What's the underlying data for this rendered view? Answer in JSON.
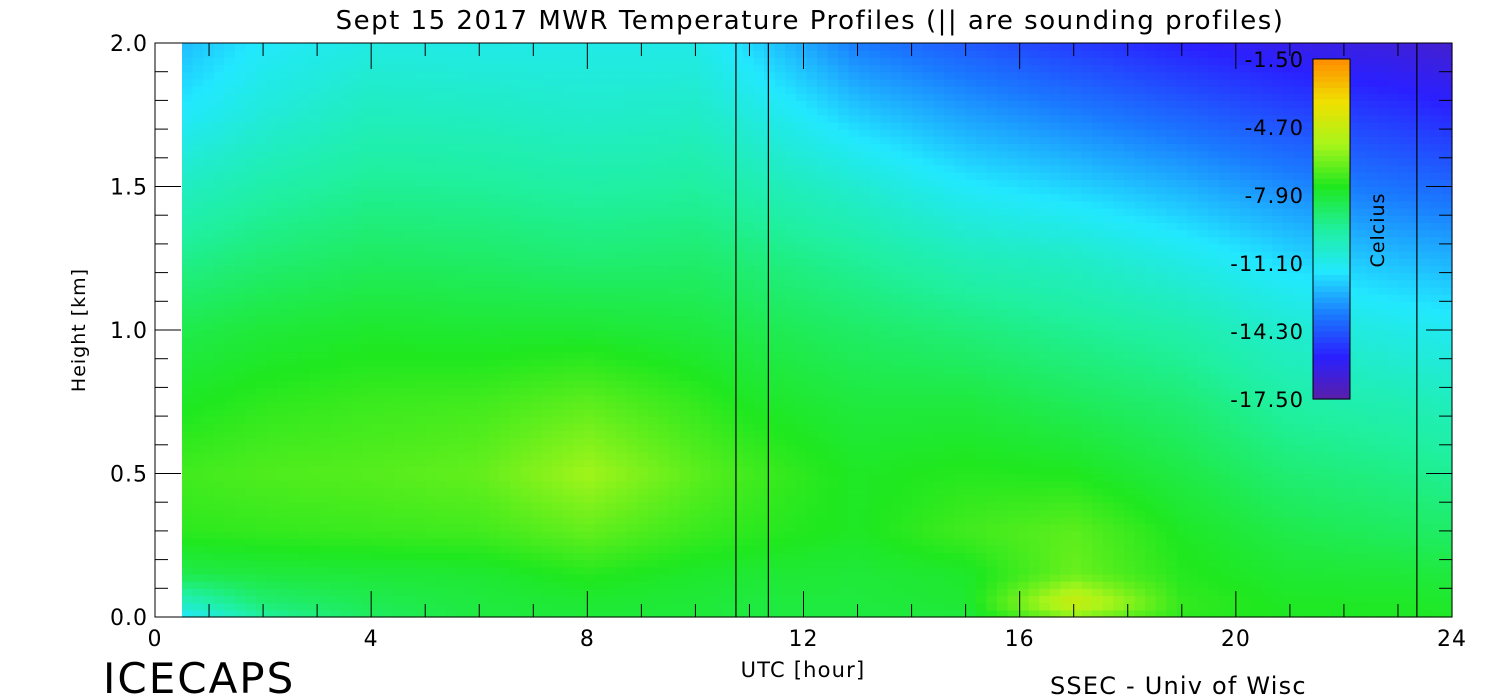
{
  "title": "Sept 15 2017 MWR Temperature Profiles (|| are sounding profiles)",
  "footer_left": "ICECAPS",
  "footer_right": "SSEC - Univ of Wisc",
  "chart_data": {
    "type": "heatmap",
    "title": "Sept 15 2017 MWR Temperature Profiles (|| are sounding profiles)",
    "xlabel": "UTC [hour]",
    "ylabel": "Height [km]",
    "xlim": [
      0,
      24
    ],
    "ylim": [
      0,
      2.0
    ],
    "x_ticks": [
      0,
      4,
      8,
      12,
      16,
      20,
      24
    ],
    "x_tick_labels": [
      "0",
      "4",
      "8",
      "12",
      "16",
      "20",
      "24"
    ],
    "y_ticks": [
      0.0,
      0.5,
      1.0,
      1.5,
      2.0
    ],
    "y_tick_labels": [
      "0.0",
      "0.5",
      "1.0",
      "1.5",
      "2.0"
    ],
    "data_x_range": [
      0.5,
      24
    ],
    "sounding_profiles_utc": [
      10.75,
      11.35,
      23.35
    ],
    "colorbar": {
      "label": "Celcius",
      "min": -17.5,
      "max": -1.5,
      "ticks": [
        -1.5,
        -4.7,
        -7.9,
        -11.1,
        -14.3,
        -17.5
      ],
      "tick_labels": [
        "-1.50",
        "-4.70",
        "-7.90",
        "-11.10",
        "-14.30",
        "-17.50"
      ],
      "colormap": [
        "#5a1fa8",
        "#2a20ff",
        "#1a7bff",
        "#22e8ff",
        "#1ff0a0",
        "#1fe81f",
        "#a8f51a",
        "#f0e000",
        "#ff8c00"
      ]
    },
    "temperature_grid_celsius": {
      "x_hours": [
        0.5,
        2,
        4,
        6,
        8,
        10,
        11,
        13,
        15,
        17,
        19,
        21,
        23,
        24
      ],
      "heights_km": [
        0.0,
        0.05,
        0.15,
        0.3,
        0.5,
        0.75,
        1.0,
        1.25,
        1.5,
        1.75,
        2.0
      ],
      "values": [
        [
          -11.5,
          -10.2,
          -8.2,
          -7.3,
          -7.0,
          -7.6,
          -8.2,
          -9.2,
          -10.2,
          -11.4,
          -12.3
        ],
        [
          -9.5,
          -8.8,
          -8.0,
          -7.2,
          -6.8,
          -7.3,
          -7.9,
          -8.8,
          -9.7,
          -10.7,
          -11.4
        ],
        [
          -8.5,
          -8.3,
          -7.9,
          -7.1,
          -6.7,
          -7.1,
          -7.7,
          -8.5,
          -9.3,
          -10.1,
          -10.9
        ],
        [
          -8.0,
          -8.0,
          -7.8,
          -7.0,
          -6.5,
          -7.0,
          -7.8,
          -8.6,
          -9.4,
          -10.2,
          -11.0
        ],
        [
          -7.9,
          -7.8,
          -7.4,
          -6.5,
          -5.6,
          -6.6,
          -7.8,
          -8.8,
          -9.6,
          -10.4,
          -11.0
        ],
        [
          -7.9,
          -7.9,
          -7.7,
          -7.1,
          -6.6,
          -7.2,
          -8.0,
          -8.7,
          -9.5,
          -10.3,
          -11.0
        ],
        [
          -8.0,
          -8.0,
          -7.8,
          -7.3,
          -7.0,
          -7.6,
          -8.2,
          -8.9,
          -9.8,
          -10.8,
          -11.8
        ],
        [
          -8.0,
          -8.0,
          -7.9,
          -7.6,
          -7.6,
          -8.0,
          -8.6,
          -9.4,
          -10.5,
          -12.0,
          -13.5
        ],
        [
          -8.0,
          -7.8,
          -7.7,
          -7.0,
          -7.4,
          -8.0,
          -8.9,
          -10.0,
          -11.4,
          -12.8,
          -14.2
        ],
        [
          -6.0,
          -4.5,
          -6.4,
          -6.6,
          -7.5,
          -8.4,
          -9.3,
          -10.3,
          -11.9,
          -13.4,
          -14.9
        ],
        [
          -7.3,
          -7.2,
          -7.4,
          -7.6,
          -8.1,
          -8.8,
          -9.7,
          -11.0,
          -12.5,
          -14.0,
          -15.5
        ],
        [
          -7.6,
          -7.6,
          -7.8,
          -8.2,
          -8.8,
          -9.6,
          -10.5,
          -11.8,
          -13.2,
          -14.6,
          -16.0
        ],
        [
          -7.6,
          -7.6,
          -7.9,
          -8.5,
          -9.1,
          -9.9,
          -11.0,
          -12.3,
          -13.7,
          -15.0,
          -16.3
        ],
        [
          -7.6,
          -7.7,
          -8.0,
          -8.6,
          -9.3,
          -10.1,
          -11.2,
          -12.5,
          -13.9,
          -15.3,
          -16.6
        ]
      ]
    }
  }
}
